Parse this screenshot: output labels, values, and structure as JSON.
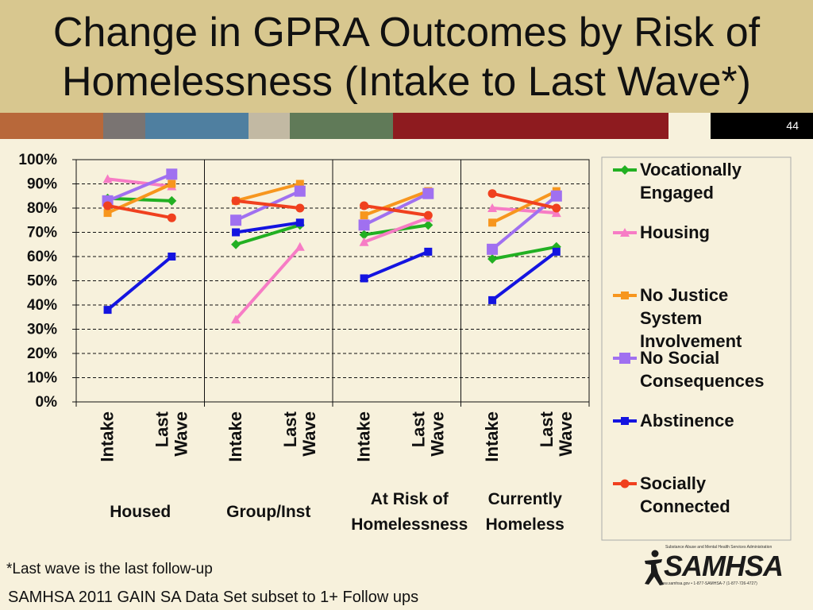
{
  "slide": {
    "title_line1": "Change in GPRA Outcomes by Risk of",
    "title_line2": "Homelessness (Intake to Last Wave*)",
    "number": "44",
    "footnote": "*Last wave is the last follow-up",
    "source": "SAMHSA 2011 GAIN SA Data Set subset to 1+ Follow ups",
    "logo": {
      "name": "SAMHSA",
      "tagline": "Substance Abuse and Mental Health Services Administration",
      "contact": "www.samhsa.gov • 1-877-SAMHSA-7 (1-877-726-4727)"
    },
    "colors": {
      "title_band": "#d8c78f",
      "background": "#f7f1dc",
      "stripes": [
        "#b8683a",
        "#7a7472",
        "#4f7fa0",
        "#c2b9a3",
        "#607a58",
        "#8e1b1f",
        "#f7f1dc"
      ]
    }
  },
  "chart_data": {
    "type": "line",
    "y_ticks": [
      "100%",
      "90%",
      "80%",
      "70%",
      "60%",
      "50%",
      "40%",
      "30%",
      "20%",
      "10%",
      "0%"
    ],
    "ylim": [
      0,
      100
    ],
    "grid": "horizontal dashed",
    "legend_position": "right",
    "points": [
      "Intake",
      "Last Wave"
    ],
    "groups": [
      {
        "label": "Housed",
        "x_labels": [
          "Intake",
          "Last Wave"
        ]
      },
      {
        "label": "Group/Inst",
        "x_labels": [
          "Intake",
          "Last Wave"
        ]
      },
      {
        "label": "At Risk of Homelessness",
        "x_labels": [
          "Intake",
          "Last Wave"
        ]
      },
      {
        "label": "Currently Homeless",
        "x_labels": [
          "Intake",
          "Last Wave"
        ]
      }
    ],
    "series": [
      {
        "name": "Vocationally Engaged",
        "color": "#22b022",
        "marker": "diamond",
        "values": [
          [
            84,
            83
          ],
          [
            65,
            73
          ],
          [
            69,
            73
          ],
          [
            59,
            64
          ]
        ]
      },
      {
        "name": "Housing",
        "color": "#f77cc5",
        "marker": "triangle",
        "values": [
          [
            92,
            89
          ],
          [
            34,
            64
          ],
          [
            66,
            76
          ],
          [
            80,
            78
          ]
        ]
      },
      {
        "name": "No Justice System Involvement",
        "color": "#f7961e",
        "marker": "square",
        "values": [
          [
            78,
            90
          ],
          [
            83,
            90
          ],
          [
            77,
            87
          ],
          [
            74,
            87
          ]
        ]
      },
      {
        "name": "No Social Consequences",
        "color": "#a070f0",
        "marker": "square-large",
        "values": [
          [
            83,
            94
          ],
          [
            75,
            87
          ],
          [
            73,
            86
          ],
          [
            63,
            85
          ]
        ]
      },
      {
        "name": "Abstinence",
        "color": "#1414e0",
        "marker": "square",
        "values": [
          [
            38,
            60
          ],
          [
            70,
            74
          ],
          [
            51,
            62
          ],
          [
            42,
            62
          ]
        ]
      },
      {
        "name": "Socially Connected",
        "color": "#f0401e",
        "marker": "circle",
        "values": [
          [
            81,
            76
          ],
          [
            83,
            80
          ],
          [
            81,
            77
          ],
          [
            86,
            80
          ]
        ]
      }
    ]
  }
}
